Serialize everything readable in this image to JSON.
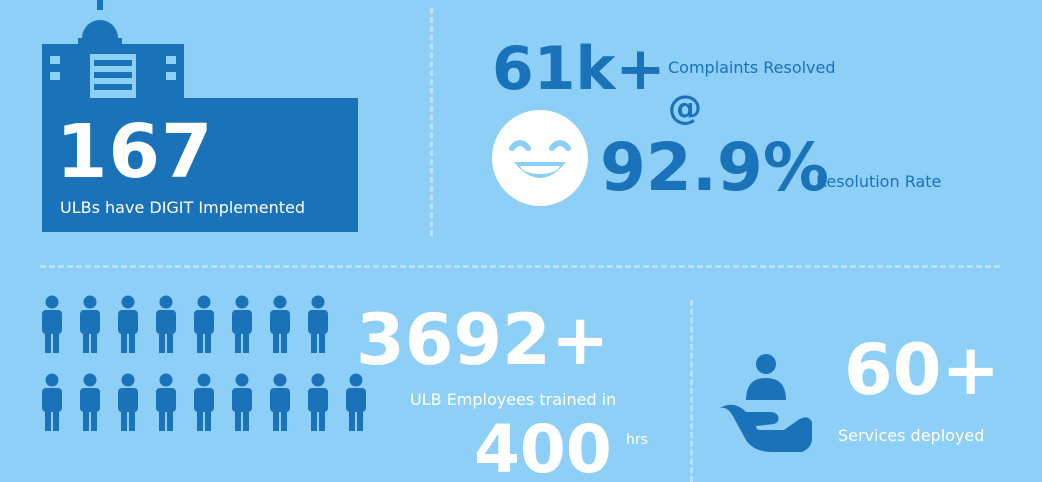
{
  "colors": {
    "background": "#8ecff8",
    "primary_blue": "#1a72b9",
    "white": "#ffffff",
    "divider": "#b9e2fb"
  },
  "ulbs": {
    "count": "167",
    "caption": "ULBs have DIGIT Implemented",
    "icon": "government-building-icon"
  },
  "complaints": {
    "count": "61k+",
    "label": "Complaints Resolved",
    "at_symbol": "@",
    "rate": "92.9%",
    "rate_label": "Resolution Rate",
    "icon": "smiley-face-icon"
  },
  "employees": {
    "count": "3692+",
    "label": "ULB Employees trained in",
    "hours": "400",
    "hours_unit": "hrs",
    "icon": "people-group-icon"
  },
  "services": {
    "count": "60+",
    "label": "Services deployed",
    "icon": "hand-with-person-icon"
  }
}
